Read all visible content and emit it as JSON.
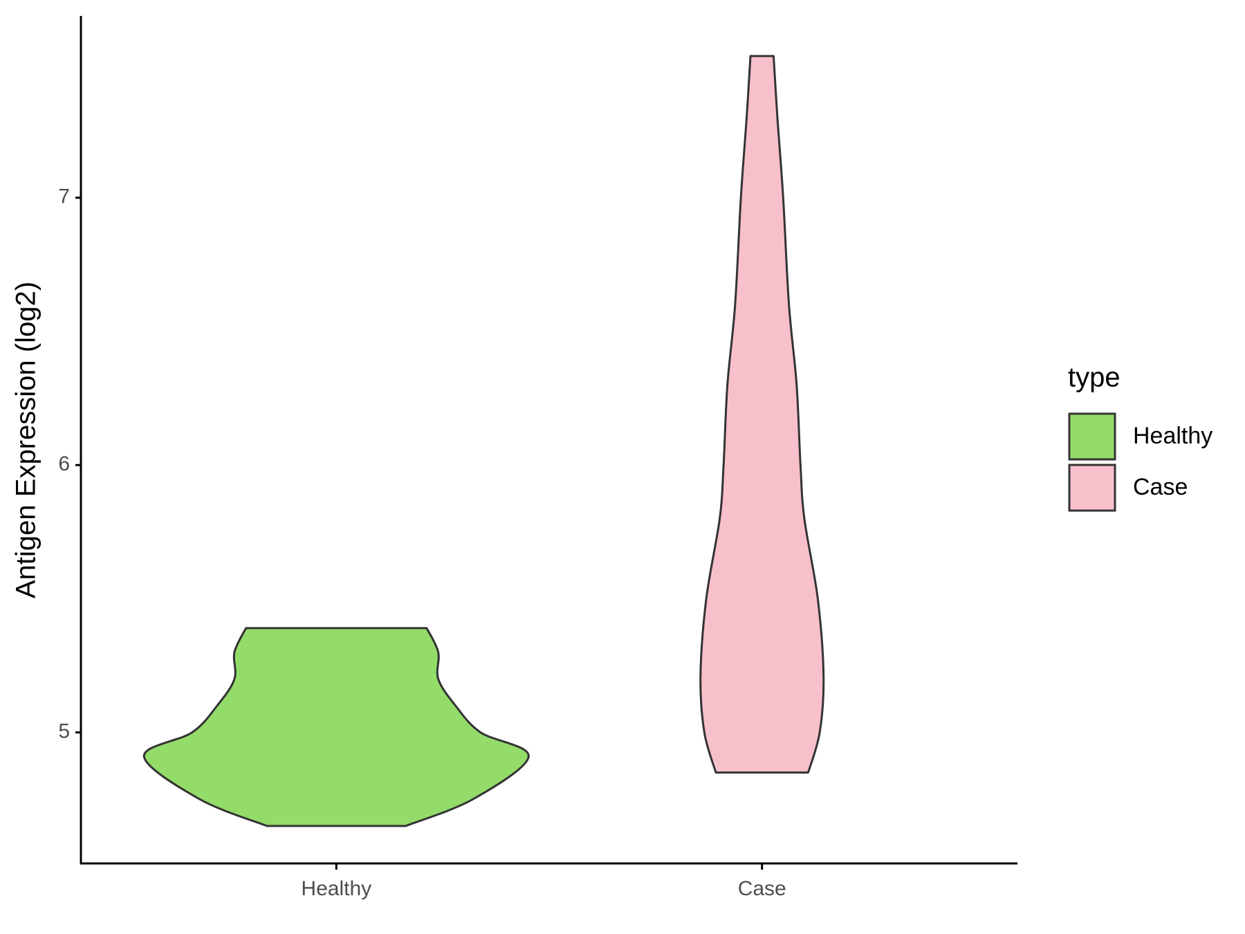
{
  "chart_data": {
    "type": "violin",
    "y_label": "Antigen Expression (log2)",
    "categories": [
      "Healthy",
      "Case"
    ],
    "legend_title": "type",
    "legend": "right",
    "ylim": [
      4.51,
      7.68
    ],
    "yticks": [
      5,
      6,
      7
    ],
    "series": [
      {
        "name": "Healthy",
        "color": "#93dc6a",
        "y": [
          4.65,
          4.75,
          4.91,
          5.0,
          5.1,
          5.2,
          5.3,
          5.39
        ],
        "density": [
          0.36,
          0.71,
          1,
          0.75,
          0.62,
          0.53,
          0.53,
          0.47
        ]
      },
      {
        "name": "Case",
        "color": "#f8c0cb",
        "y": [
          4.85,
          5.0,
          5.21,
          5.5,
          5.8,
          6.0,
          6.3,
          6.6,
          7.0,
          7.3,
          7.53
        ],
        "density": [
          0.24,
          0.3,
          0.32,
          0.29,
          0.22,
          0.2,
          0.18,
          0.14,
          0.11,
          0.08,
          0.06
        ]
      }
    ]
  }
}
